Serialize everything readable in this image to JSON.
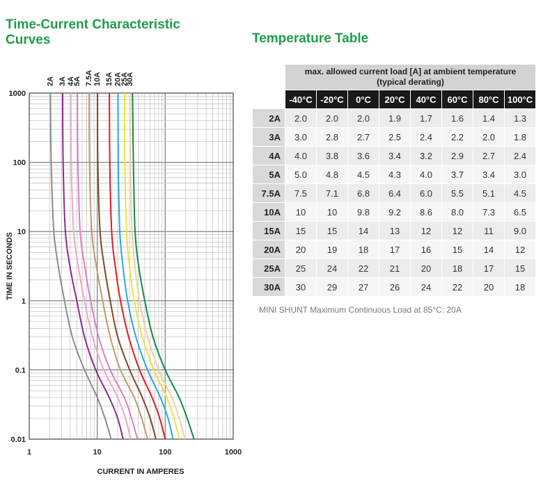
{
  "left_title": "Time-Current Characteristic Curves",
  "right_title": "Temperature Table",
  "chart_data": {
    "type": "line",
    "title": "Time-Current Characteristic Curves",
    "xlabel": "CURRENT IN AMPERES",
    "ylabel": "TIME IN SECONDS",
    "xscale": "log",
    "yscale": "log",
    "xlim": [
      1,
      1000
    ],
    "ylim": [
      0.01,
      1000
    ],
    "x_ticks": [
      "1",
      "10",
      "100",
      "1000"
    ],
    "y_ticks": [
      "0.01",
      "0.1",
      "1",
      "10",
      "100",
      "1000"
    ],
    "series": [
      {
        "name": "2A",
        "color": "#8c8c8c",
        "points": [
          [
            2.05,
            1000
          ],
          [
            2.1,
            100
          ],
          [
            2.3,
            10
          ],
          [
            2.7,
            3
          ],
          [
            3.3,
            1
          ],
          [
            4.3,
            0.3
          ],
          [
            6.5,
            0.1
          ],
          [
            10,
            0.04
          ],
          [
            13,
            0.02
          ],
          [
            16,
            0.01
          ]
        ]
      },
      {
        "name": "3A",
        "color": "#8e2a8f",
        "points": [
          [
            3.1,
            1000
          ],
          [
            3.15,
            100
          ],
          [
            3.4,
            10
          ],
          [
            4,
            3
          ],
          [
            5,
            1
          ],
          [
            6.5,
            0.3
          ],
          [
            9.5,
            0.1
          ],
          [
            15,
            0.04
          ],
          [
            20,
            0.02
          ],
          [
            24,
            0.01
          ]
        ]
      },
      {
        "name": "4A",
        "color": "#f4a6c9",
        "points": [
          [
            4.1,
            1000
          ],
          [
            4.15,
            100
          ],
          [
            4.5,
            10
          ],
          [
            5.3,
            3
          ],
          [
            6.5,
            1
          ],
          [
            8.5,
            0.3
          ],
          [
            12.5,
            0.1
          ],
          [
            20,
            0.04
          ],
          [
            26,
            0.02
          ],
          [
            31,
            0.01
          ]
        ]
      },
      {
        "name": "5A",
        "color": "#d97fbf",
        "points": [
          [
            5.1,
            1000
          ],
          [
            5.2,
            100
          ],
          [
            5.6,
            10
          ],
          [
            6.6,
            3
          ],
          [
            8,
            1
          ],
          [
            10.5,
            0.3
          ],
          [
            15.5,
            0.1
          ],
          [
            25,
            0.04
          ],
          [
            32,
            0.02
          ],
          [
            39,
            0.01
          ]
        ]
      },
      {
        "name": "7.5A",
        "color": "#c39a6b",
        "points": [
          [
            7.6,
            1000
          ],
          [
            7.7,
            100
          ],
          [
            8.3,
            10
          ],
          [
            9.8,
            3
          ],
          [
            12,
            1
          ],
          [
            15.5,
            0.3
          ],
          [
            22,
            0.1
          ],
          [
            35,
            0.04
          ],
          [
            45,
            0.02
          ],
          [
            55,
            0.01
          ]
        ]
      },
      {
        "name": "10A",
        "color": "#7b4a21",
        "points": [
          [
            10.1,
            1000
          ],
          [
            10.2,
            100
          ],
          [
            11,
            10
          ],
          [
            12.8,
            3
          ],
          [
            15.5,
            1
          ],
          [
            20,
            0.3
          ],
          [
            30,
            0.1
          ],
          [
            46,
            0.04
          ],
          [
            60,
            0.02
          ],
          [
            73,
            0.01
          ]
        ]
      },
      {
        "name": "15A",
        "color": "#e01b24",
        "points": [
          [
            15.1,
            1000
          ],
          [
            15.3,
            100
          ],
          [
            16.3,
            10
          ],
          [
            18.5,
            3
          ],
          [
            22,
            1
          ],
          [
            29,
            0.3
          ],
          [
            42,
            0.1
          ],
          [
            64,
            0.04
          ],
          [
            83,
            0.02
          ],
          [
            100,
            0.01
          ]
        ]
      },
      {
        "name": "20A",
        "color": "#28a9e1",
        "points": [
          [
            20.2,
            1000
          ],
          [
            20.4,
            100
          ],
          [
            21.5,
            10
          ],
          [
            24,
            3
          ],
          [
            28,
            1
          ],
          [
            37,
            0.3
          ],
          [
            55,
            0.1
          ],
          [
            85,
            0.04
          ],
          [
            110,
            0.02
          ],
          [
            130,
            0.01
          ]
        ]
      },
      {
        "name": "25A",
        "color": "#f3e23a",
        "points": [
          [
            25.3,
            1000
          ],
          [
            25.5,
            100
          ],
          [
            27,
            10
          ],
          [
            30,
            3
          ],
          [
            35,
            1
          ],
          [
            46,
            0.3
          ],
          [
            68,
            0.1
          ],
          [
            105,
            0.04
          ],
          [
            135,
            0.02
          ],
          [
            162,
            0.01
          ]
        ]
      },
      {
        "name": "30A",
        "color": "#f5cf9e",
        "points": [
          [
            30.4,
            1000
          ],
          [
            30.7,
            100
          ],
          [
            32.5,
            10
          ],
          [
            36,
            3
          ],
          [
            42,
            1
          ],
          [
            55,
            0.3
          ],
          [
            80,
            0.1
          ],
          [
            125,
            0.04
          ],
          [
            160,
            0.02
          ],
          [
            195,
            0.01
          ]
        ]
      },
      {
        "name": "30A",
        "color": "#0f8a4f",
        "points": [
          [
            33,
            1000
          ],
          [
            34,
            100
          ],
          [
            36,
            10
          ],
          [
            41,
            3
          ],
          [
            50,
            1
          ],
          [
            66,
            0.3
          ],
          [
            100,
            0.1
          ],
          [
            160,
            0.04
          ],
          [
            210,
            0.02
          ],
          [
            265,
            0.01
          ]
        ]
      }
    ]
  },
  "temperature_table": {
    "caption": "max. allowed current load [A] at ambient temperature",
    "subcaption": "(typical derating)",
    "temps": [
      "-40°C",
      "-20°C",
      "0°C",
      "20°C",
      "40°C",
      "60°C",
      "80°C",
      "100°C"
    ],
    "rows": [
      {
        "rating": "2A",
        "values": [
          "2.0",
          "2.0",
          "2.0",
          "1.9",
          "1.7",
          "1.6",
          "1.4",
          "1.3"
        ]
      },
      {
        "rating": "3A",
        "values": [
          "3.0",
          "2.8",
          "2.7",
          "2.5",
          "2.4",
          "2.2",
          "2.0",
          "1.8"
        ]
      },
      {
        "rating": "4A",
        "values": [
          "4.0",
          "3.8",
          "3.6",
          "3.4",
          "3.2",
          "2.9",
          "2.7",
          "2.4"
        ]
      },
      {
        "rating": "5A",
        "values": [
          "5.0",
          "4.8",
          "4.5",
          "4.3",
          "4.0",
          "3.7",
          "3.4",
          "3.0"
        ]
      },
      {
        "rating": "7.5A",
        "values": [
          "7.5",
          "7.1",
          "6.8",
          "6.4",
          "6.0",
          "5.5",
          "5.1",
          "4.5"
        ]
      },
      {
        "rating": "10A",
        "values": [
          "10",
          "10",
          "9.8",
          "9.2",
          "8.6",
          "8.0",
          "7.3",
          "6.5"
        ]
      },
      {
        "rating": "15A",
        "values": [
          "15",
          "15",
          "14",
          "13",
          "12",
          "12",
          "11",
          "9.0"
        ]
      },
      {
        "rating": "20A",
        "values": [
          "20",
          "19",
          "18",
          "17",
          "16",
          "15",
          "14",
          "12"
        ]
      },
      {
        "rating": "25A",
        "values": [
          "25",
          "24",
          "22",
          "21",
          "20",
          "18",
          "17",
          "15"
        ]
      },
      {
        "rating": "30A",
        "values": [
          "30",
          "29",
          "27",
          "26",
          "24",
          "22",
          "20",
          "18"
        ]
      }
    ]
  },
  "footnote": "MINI SHUNT Maximum Continuous Load at 85°C: 20A",
  "colors": {
    "title_green": "#1f9d4a",
    "header_black": "#1a1a1a"
  }
}
